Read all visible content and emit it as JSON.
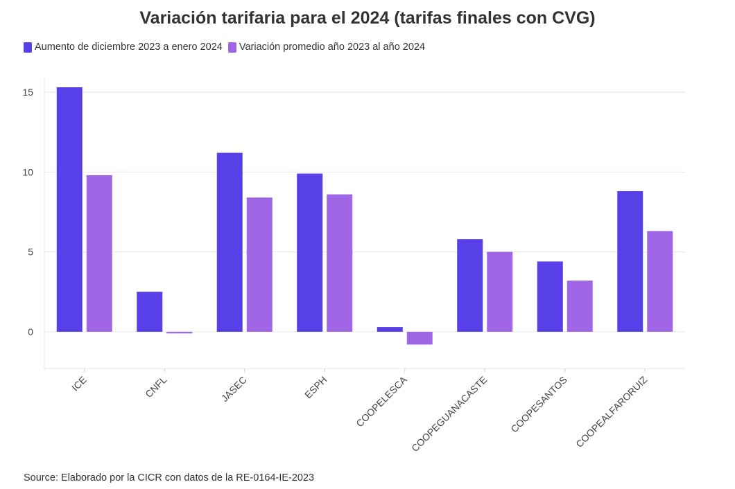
{
  "chart_data": {
    "type": "bar",
    "title": "Variación tarifaria para el 2024 (tarifas finales con CVG)",
    "xlabel": "",
    "ylabel": "",
    "categories": [
      "ICE",
      "CNFL",
      "JASEC",
      "ESPH",
      "COOPELESCA",
      "COOPEGUANACASTE",
      "COOPESANTOS",
      "COOPEALFARORUIZ"
    ],
    "series": [
      {
        "name": "Aumento de diciembre 2023 a enero 2024",
        "color": "#5740e8",
        "values": [
          15.3,
          2.5,
          11.2,
          9.9,
          0.3,
          5.8,
          4.4,
          8.8
        ]
      },
      {
        "name": "Variación promedio año 2023 al año 2024",
        "color": "#a066e6",
        "values": [
          9.8,
          -0.1,
          8.4,
          8.6,
          -0.8,
          5.0,
          3.2,
          6.3
        ]
      }
    ],
    "yticks": [
      "0",
      "5",
      "10",
      "15"
    ],
    "ylim": [
      -2,
      15.6
    ],
    "grid": true,
    "legend_position": "top-left"
  },
  "source": "Source: Elaborado por la CICR con datos de la RE-0164-IE-2023"
}
